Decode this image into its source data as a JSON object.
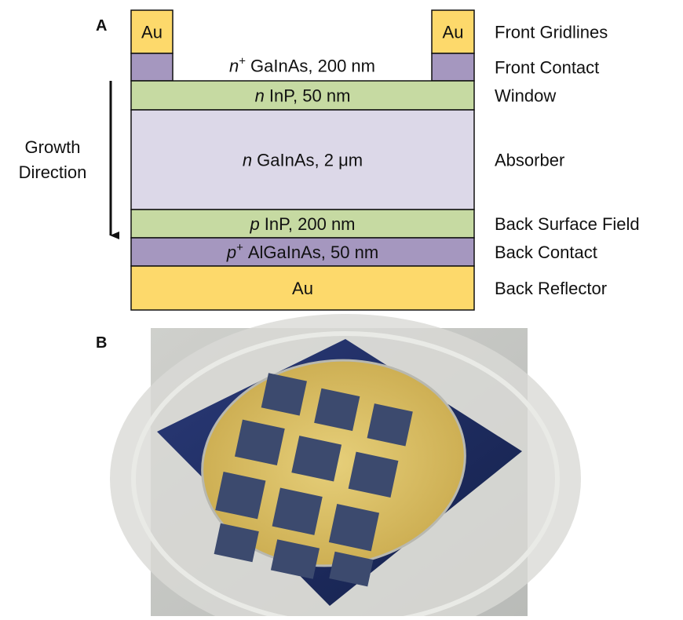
{
  "panel_a": {
    "label": "A",
    "layers": [
      {
        "text": "Au",
        "name": "Front Gridlines"
      },
      {
        "doping": "n",
        "sup": "+",
        "text": "GaInAs, 200 nm",
        "name": "Front Contact"
      },
      {
        "doping": "n",
        "text": "InP, 50 nm",
        "name": "Window"
      },
      {
        "doping": "n",
        "text": "GaInAs, 2 μm",
        "name": "Absorber"
      },
      {
        "doping": "p",
        "text": "InP, 200 nm",
        "name": "Back Surface Field"
      },
      {
        "doping": "p",
        "sup": "+",
        "text": "AlGaInAs, 50 nm",
        "name": "Back Contact"
      },
      {
        "text": "Au",
        "name": "Back Reflector"
      }
    ],
    "growth_direction": [
      "Growth",
      "Direction"
    ]
  },
  "panel_b": {
    "label": "B"
  }
}
